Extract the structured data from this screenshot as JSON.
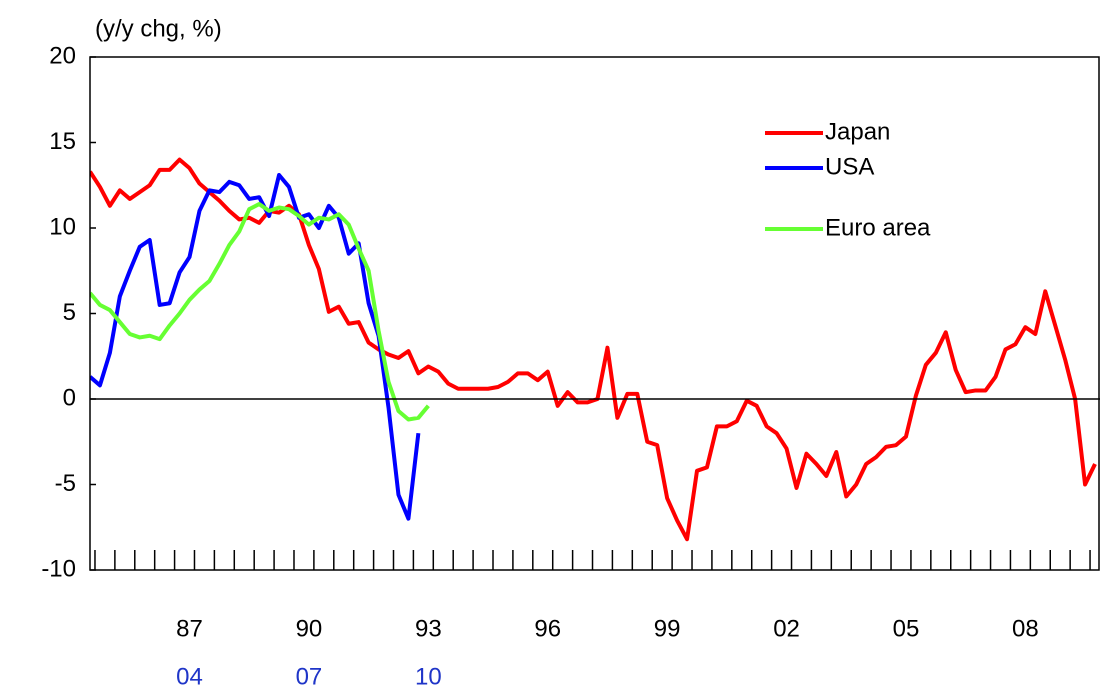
{
  "chart_data": {
    "type": "line",
    "y_axis_label": "(y/y chg, %)",
    "ylim": [
      -10,
      20
    ],
    "yticks": [
      -10,
      -5,
      0,
      5,
      10,
      15,
      20
    ],
    "legend": "upper right",
    "secondary_label_color": "#1f35c8",
    "categories": [
      null,
      null,
      null,
      null,
      null,
      null,
      null,
      null,
      null,
      null,
      "87",
      null,
      null,
      null,
      null,
      null,
      null,
      null,
      null,
      null,
      null,
      null,
      "90",
      null,
      null,
      null,
      null,
      null,
      null,
      null,
      null,
      null,
      null,
      null,
      "93",
      null,
      null,
      null,
      null,
      null,
      null,
      null,
      null,
      null,
      null,
      null,
      "96",
      null,
      null,
      null,
      null,
      null,
      null,
      null,
      null,
      null,
      null,
      null,
      "99",
      null,
      null,
      null,
      null,
      null,
      null,
      null,
      null,
      null,
      null,
      null,
      "02",
      null,
      null,
      null,
      null,
      null,
      null,
      null,
      null,
      null,
      null,
      null,
      "05",
      null,
      null,
      null,
      null,
      null,
      null,
      null,
      null,
      null,
      null,
      null,
      "08",
      null,
      null,
      null,
      null,
      null,
      null,
      null
    ],
    "categories_secondary": [
      null,
      null,
      null,
      null,
      null,
      null,
      null,
      null,
      null,
      null,
      "04",
      null,
      null,
      null,
      null,
      null,
      null,
      null,
      null,
      null,
      null,
      null,
      "07",
      null,
      null,
      null,
      null,
      null,
      null,
      null,
      null,
      null,
      null,
      null,
      "10",
      null,
      null,
      null,
      null,
      null,
      null,
      null,
      null,
      null,
      null,
      null,
      null,
      null,
      null,
      null,
      null,
      null,
      null,
      null,
      null,
      null,
      null,
      null,
      null,
      null,
      null,
      null,
      null,
      null,
      null,
      null,
      null,
      null,
      null,
      null,
      null,
      null,
      null,
      null,
      null,
      null,
      null,
      null,
      null,
      null,
      null,
      null,
      null,
      null,
      null,
      null,
      null,
      null,
      null,
      null,
      null,
      null,
      null,
      null,
      null,
      null,
      null,
      null,
      null,
      null,
      null,
      null
    ],
    "series": [
      {
        "name": "Japan",
        "color": "#ff0000",
        "values": [
          13.3,
          12.4,
          11.3,
          12.2,
          11.7,
          12.1,
          12.5,
          13.4,
          13.4,
          14.0,
          13.5,
          12.6,
          12.1,
          11.6,
          11.0,
          10.5,
          10.6,
          10.3,
          11.0,
          10.9,
          11.3,
          10.8,
          9.0,
          7.6,
          5.1,
          5.4,
          4.4,
          4.5,
          3.3,
          2.9,
          2.6,
          2.4,
          2.8,
          1.5,
          1.9,
          1.6,
          0.9,
          0.6,
          0.6,
          0.6,
          0.6,
          0.7,
          1.0,
          1.5,
          1.5,
          1.1,
          1.6,
          -0.4,
          0.4,
          -0.2,
          -0.2,
          0.0,
          3.0,
          -1.1,
          0.3,
          0.3,
          -2.5,
          -2.7,
          -5.8,
          -7.1,
          -8.2,
          -4.2,
          -4.0,
          -1.6,
          -1.6,
          -1.3,
          -0.1,
          -0.4,
          -1.6,
          -2.0,
          -2.9,
          -5.2,
          -3.2,
          -3.8,
          -4.5,
          -3.1,
          -5.7,
          -5.0,
          -3.8,
          -3.4,
          -2.8,
          -2.7,
          -2.2,
          0.2,
          2.0,
          2.7,
          3.9,
          1.7,
          0.4,
          0.5,
          0.5,
          1.3,
          2.9,
          3.2,
          4.2,
          3.8,
          6.3,
          4.3,
          2.3,
          0.0,
          -5.0,
          -3.8
        ]
      },
      {
        "name": "USA",
        "color": "#0000ff",
        "values": [
          1.3,
          0.8,
          2.7,
          6.0,
          7.5,
          8.9,
          9.3,
          5.5,
          5.6,
          7.4,
          8.3,
          11.0,
          12.2,
          12.1,
          12.7,
          12.5,
          11.7,
          11.8,
          10.7,
          13.1,
          12.4,
          10.6,
          10.8,
          10.0,
          11.3,
          10.6,
          8.5,
          9.1,
          5.6,
          3.7,
          -0.5,
          -5.6,
          -7.0,
          -2.0,
          null,
          null,
          null,
          null,
          null,
          null,
          null,
          null,
          null,
          null,
          null,
          null,
          null,
          null,
          null,
          null,
          null,
          null,
          null,
          null,
          null,
          null,
          null,
          null,
          null,
          null,
          null,
          null,
          null,
          null,
          null,
          null,
          null,
          null,
          null,
          null,
          null,
          null,
          null,
          null,
          null,
          null,
          null,
          null,
          null,
          null,
          null,
          null,
          null,
          null,
          null,
          null,
          null,
          null,
          null,
          null,
          null,
          null,
          null,
          null,
          null,
          null,
          null,
          null,
          null,
          null,
          null,
          null
        ]
      },
      {
        "name": "Euro area",
        "color": "#66ff33",
        "values": [
          6.2,
          5.5,
          5.2,
          4.5,
          3.8,
          3.6,
          3.7,
          3.5,
          4.3,
          5.0,
          5.8,
          6.4,
          6.9,
          7.9,
          9.0,
          9.8,
          11.1,
          11.4,
          11.0,
          11.2,
          11.1,
          10.7,
          10.2,
          10.6,
          10.5,
          10.8,
          10.2,
          8.8,
          7.5,
          4.0,
          1.0,
          -0.7,
          -1.2,
          -1.1,
          -0.4,
          null,
          null,
          null,
          null,
          null,
          null,
          null,
          null,
          null,
          null,
          null,
          null,
          null,
          null,
          null,
          null,
          null,
          null,
          null,
          null,
          null,
          null,
          null,
          null,
          null,
          null,
          null,
          null,
          null,
          null,
          null,
          null,
          null,
          null,
          null,
          null,
          null,
          null,
          null,
          null,
          null,
          null,
          null,
          null,
          null,
          null,
          null,
          null,
          null,
          null,
          null,
          null,
          null,
          null,
          null,
          null,
          null,
          null,
          null,
          null,
          null,
          null,
          null,
          null,
          null,
          null,
          null
        ]
      }
    ]
  }
}
